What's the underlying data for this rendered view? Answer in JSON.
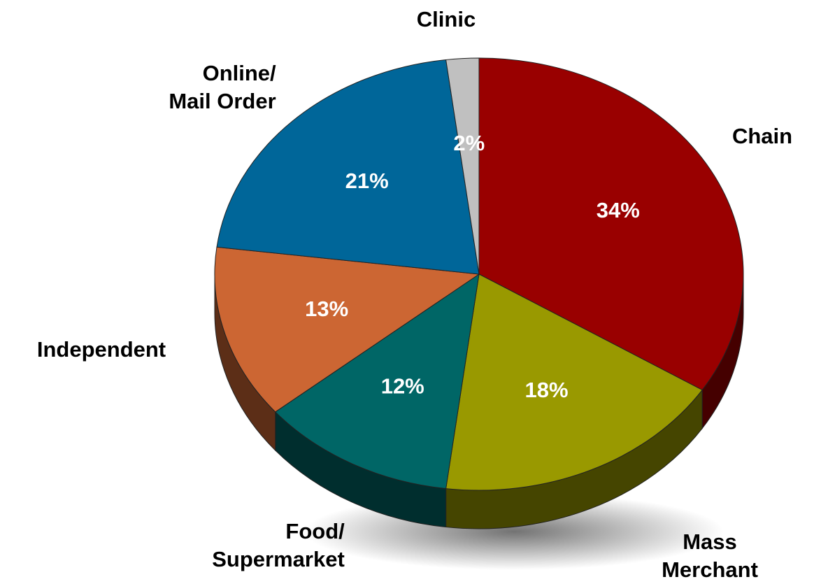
{
  "chart_data": {
    "type": "pie",
    "categories": [
      "Chain",
      "Mass Merchant",
      "Food/\nSupermarket",
      "Independent",
      "Online/\nMail Order",
      "Clinic"
    ],
    "values": [
      34,
      18,
      12,
      13,
      21,
      2
    ],
    "value_labels": [
      "34%",
      "18%",
      "12%",
      "13%",
      "21%",
      "2%"
    ],
    "colors": [
      "#990000",
      "#999900",
      "#006666",
      "#cc6633",
      "#006699",
      "#c0c0c0"
    ]
  }
}
